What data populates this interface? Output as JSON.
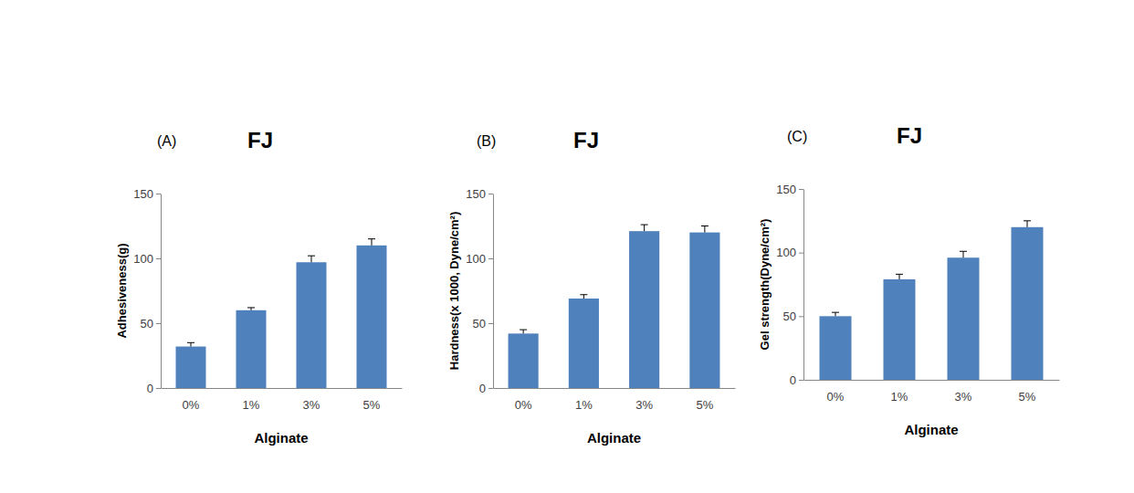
{
  "chart_data": [
    {
      "type": "bar",
      "title": "FJ",
      "annotations": [
        "(A)"
      ],
      "x_label": "Alginate",
      "y_label": "Adhesiveness(g)",
      "categories": [
        "0%",
        "1%",
        "3%",
        "5%"
      ],
      "values": [
        32,
        60,
        97,
        110
      ],
      "errors": [
        3,
        2,
        5,
        5
      ],
      "color": "#4f81bd",
      "ylim": [
        0,
        150
      ],
      "yticks": [
        0,
        50,
        100,
        150
      ],
      "grid": false
    },
    {
      "type": "bar",
      "title": "FJ",
      "annotations": [
        "(B)"
      ],
      "x_label": "Alginate",
      "y_label": "Hardness(x 1000, Dyne/cm²)",
      "categories": [
        "0%",
        "1%",
        "3%",
        "5%"
      ],
      "values": [
        42,
        69,
        121,
        120
      ],
      "errors": [
        3,
        3,
        5,
        5
      ],
      "color": "#4f81bd",
      "ylim": [
        0,
        150
      ],
      "yticks": [
        0,
        50,
        100,
        150
      ],
      "grid": false
    },
    {
      "type": "bar",
      "title": "FJ",
      "annotations": [
        "(C)"
      ],
      "x_label": "Alginate",
      "y_label": "Gel strength(Dyne/cm²)",
      "categories": [
        "0%",
        "1%",
        "3%",
        "5%"
      ],
      "values": [
        50,
        79,
        96,
        120
      ],
      "errors": [
        3,
        4,
        5,
        5
      ],
      "color": "#4f81bd",
      "ylim": [
        0,
        150
      ],
      "yticks": [
        0,
        50,
        100,
        150
      ],
      "grid": false
    }
  ]
}
